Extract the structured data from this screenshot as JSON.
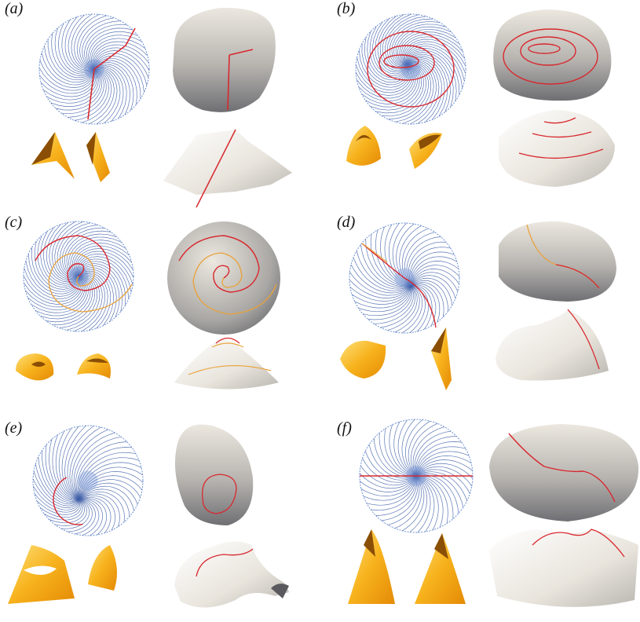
{
  "figure": {
    "panels": [
      {
        "id": "a",
        "label": "(a)"
      },
      {
        "id": "b",
        "label": "(b)"
      },
      {
        "id": "c",
        "label": "(c)"
      },
      {
        "id": "d",
        "label": "(d)"
      },
      {
        "id": "e",
        "label": "(e)"
      },
      {
        "id": "f",
        "label": "(f)"
      }
    ]
  },
  "colors": {
    "pattern_lines": "#3f5fa8",
    "pattern_dense": "#6f93d6",
    "fold_red": "#d8282e",
    "fold_orange": "#e9a23a",
    "surface_light": "#ece8e0",
    "surface_dark": "#6f6f73",
    "paper_gold": "#f7b21c",
    "paper_shadow": "#8a4e05"
  }
}
